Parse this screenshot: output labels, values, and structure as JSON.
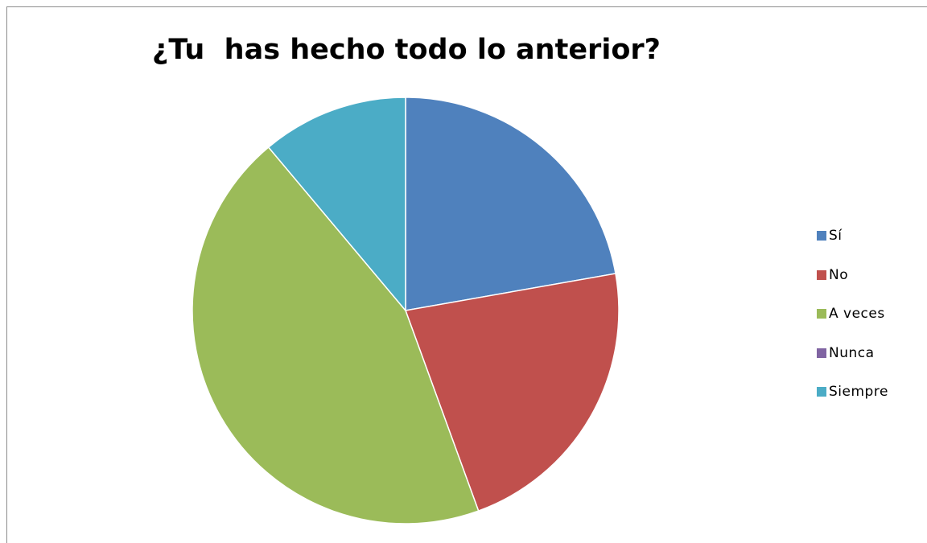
{
  "chart_data": {
    "type": "pie",
    "title": "¿Tu  has hecho todo lo anterior?",
    "categories": [
      "Sí",
      "No",
      "A veces",
      "Nunca",
      "Siempre"
    ],
    "values": [
      22.2,
      22.2,
      44.4,
      0,
      11.1
    ],
    "colors": [
      "#4F81BD",
      "#C0504D",
      "#9BBB59",
      "#8064A2",
      "#4BACC6"
    ],
    "legend_position": "right",
    "start_angle_deg": 0,
    "direction": "clockwise"
  }
}
